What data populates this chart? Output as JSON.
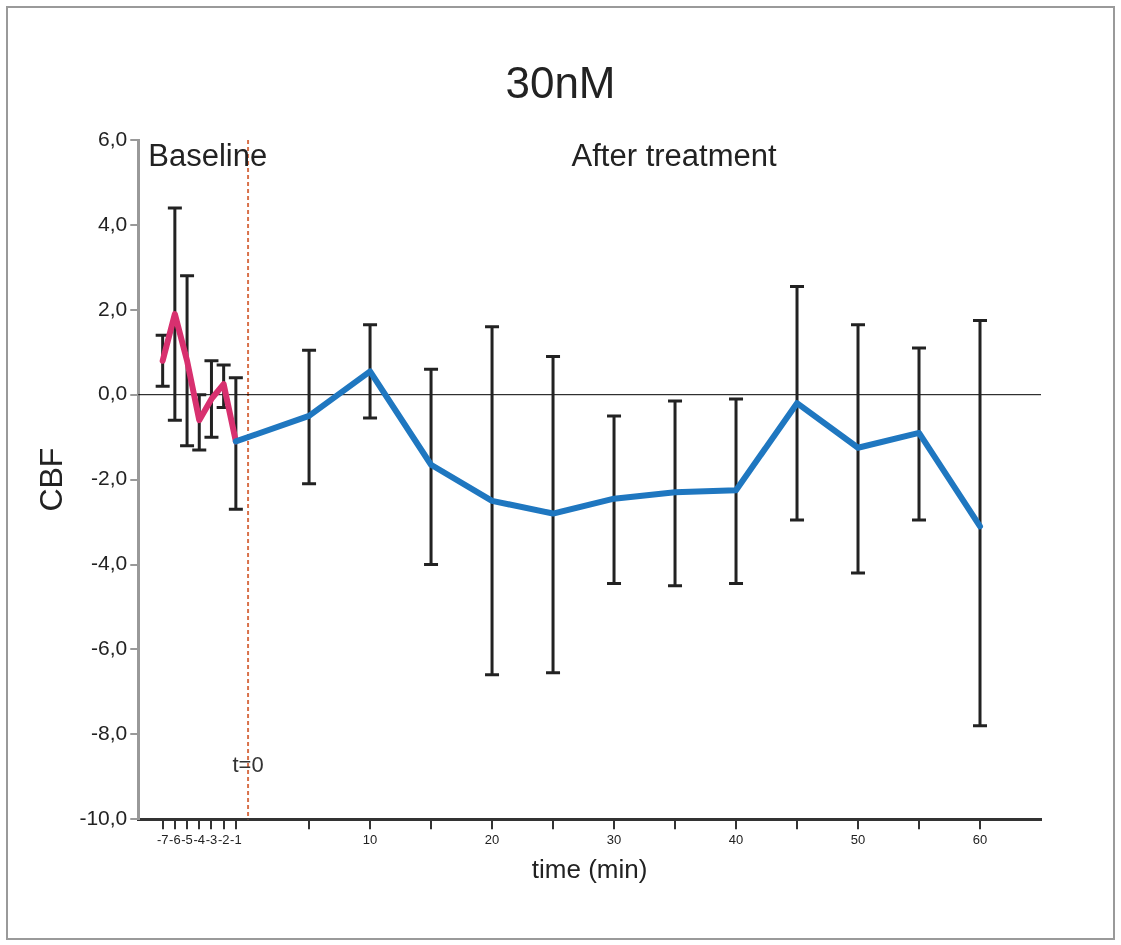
{
  "chart_data": {
    "type": "line",
    "title": "30nM",
    "xlabel": "time (min)",
    "ylabel": "CBF",
    "xlim": [
      -9,
      65
    ],
    "xticks": [
      -7,
      -6,
      -5,
      -4,
      -3,
      -2,
      -1,
      {
        "value": 5,
        "label": null
      },
      10,
      {
        "value": 15,
        "label": null
      },
      20,
      {
        "value": 25,
        "label": null
      },
      30,
      {
        "value": 35,
        "label": null
      },
      40,
      {
        "value": 45,
        "label": null
      },
      50,
      {
        "value": 55,
        "label": null
      },
      60
    ],
    "ylim": [
      -10,
      6
    ],
    "yticks": [
      {
        "value": -10,
        "label": "-10,0"
      },
      {
        "value": -8,
        "label": "-8,0"
      },
      {
        "value": -6,
        "label": "-6,0"
      },
      {
        "value": -4,
        "label": "-4,0"
      },
      {
        "value": -2,
        "label": "-2,0"
      },
      {
        "value": 0,
        "label": "0,0"
      },
      {
        "value": 2,
        "label": "2,0"
      },
      {
        "value": 4,
        "label": "4,0"
      },
      {
        "value": 6,
        "label": "6,0"
      }
    ],
    "series": [
      {
        "color": "#1f77c0",
        "x": [
          -1,
          5,
          10,
          15,
          20,
          25,
          30,
          35,
          40,
          45,
          50,
          55,
          60
        ],
        "values": [
          -1.1,
          -0.5,
          0.55,
          -1.65,
          -2.5,
          -2.8,
          -2.45,
          -2.3,
          -2.25,
          -0.2,
          -1.25,
          -0.9,
          -3.1
        ],
        "errors": [
          null,
          [
            -2.1,
            1.05
          ],
          [
            -0.55,
            1.65
          ],
          [
            -4.0,
            0.6
          ],
          [
            -6.6,
            1.6
          ],
          [
            -6.55,
            0.9
          ],
          [
            -4.45,
            -0.5
          ],
          [
            -4.5,
            -0.15
          ],
          [
            -4.45,
            -0.1
          ],
          [
            -2.95,
            2.55
          ],
          [
            -4.2,
            1.65
          ],
          [
            -2.95,
            1.1
          ],
          [
            -7.8,
            1.75
          ]
        ]
      },
      {
        "color": "#d8306f",
        "x": [
          -7,
          -6,
          -5,
          -4,
          -3,
          -2,
          -1
        ],
        "values": [
          0.8,
          1.9,
          0.8,
          -0.6,
          -0.1,
          0.25,
          -1.1
        ],
        "errors": [
          [
            0.2,
            1.4
          ],
          [
            -0.6,
            4.4
          ],
          [
            -1.2,
            2.8
          ],
          [
            -1.3,
            0.0
          ],
          [
            -1.0,
            0.8
          ],
          [
            -0.3,
            0.7
          ],
          [
            -2.7,
            0.4
          ]
        ]
      }
    ],
    "ref_lines": [
      {
        "axis": "x",
        "value": 0,
        "label": "t=0",
        "color": "#d9714a",
        "line_style": "dashed"
      },
      {
        "axis": "y",
        "value": 0,
        "color": "#000000",
        "line_style": "solid"
      }
    ],
    "annotations": [
      "Baseline",
      "After treatment"
    ],
    "grid": false,
    "legend": false,
    "marker": "none",
    "line_style": "solid"
  }
}
